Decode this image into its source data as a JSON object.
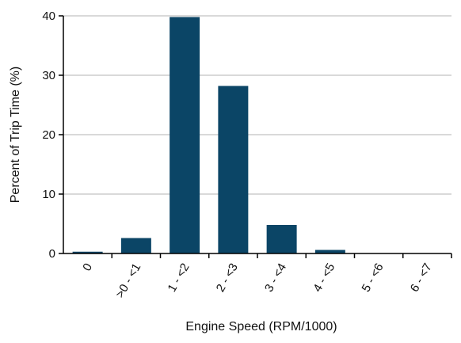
{
  "chart_data": {
    "type": "bar",
    "title": "",
    "xlabel": "Engine Speed (RPM/1000)",
    "ylabel": "Percent of Trip Time (%)",
    "categories": [
      "0",
      ">0 - <1",
      "1 - <2",
      "2 - <3",
      "3 - <4",
      "4 - <5",
      "5 - <6",
      "6 - <7"
    ],
    "values": [
      0.3,
      2.6,
      39.8,
      28.2,
      4.8,
      0.6,
      0.05,
      0.0
    ],
    "ylim": [
      0,
      40
    ],
    "yticks": [
      0,
      10,
      20,
      30,
      40
    ],
    "grid": true,
    "bar_color": "#0b4566",
    "grid_color": "#d9d9d9"
  }
}
